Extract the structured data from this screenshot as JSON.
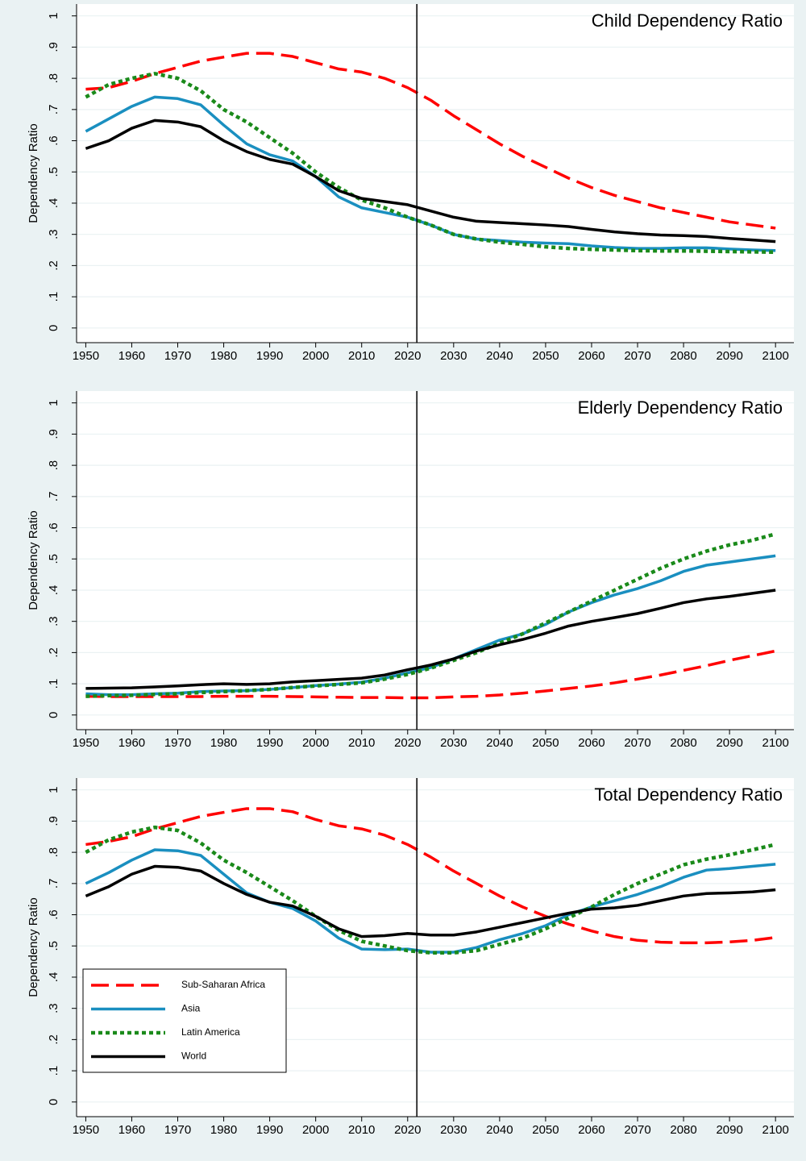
{
  "chart_data": [
    {
      "type": "line",
      "title": "Child Dependency Ratio",
      "y_label": "Dependency Ratio",
      "x": [
        1950,
        1955,
        1960,
        1965,
        1970,
        1975,
        1980,
        1985,
        1990,
        1995,
        2000,
        2005,
        2010,
        2015,
        2020,
        2025,
        2030,
        2035,
        2040,
        2045,
        2050,
        2055,
        2060,
        2065,
        2070,
        2075,
        2080,
        2085,
        2090,
        2095,
        2100
      ],
      "series": [
        {
          "color": "#ff0000",
          "style": "dashed",
          "values": [
            0.765,
            0.77,
            0.79,
            0.815,
            0.835,
            0.855,
            0.868,
            0.88,
            0.88,
            0.87,
            0.85,
            0.83,
            0.82,
            0.8,
            0.77,
            0.73,
            0.68,
            0.635,
            0.59,
            0.55,
            0.515,
            0.48,
            0.45,
            0.425,
            0.405,
            0.385,
            0.37,
            0.355,
            0.34,
            0.33,
            0.32
          ]
        },
        {
          "color": "#1a8fc0",
          "style": "solid",
          "values": [
            0.63,
            0.67,
            0.71,
            0.74,
            0.735,
            0.715,
            0.65,
            0.59,
            0.555,
            0.535,
            0.485,
            0.42,
            0.385,
            0.37,
            0.355,
            0.33,
            0.3,
            0.285,
            0.28,
            0.275,
            0.272,
            0.27,
            0.263,
            0.258,
            0.255,
            0.255,
            0.257,
            0.257,
            0.253,
            0.25,
            0.248
          ]
        },
        {
          "color": "#1a8a1a",
          "style": "dotted",
          "values": [
            0.74,
            0.78,
            0.8,
            0.815,
            0.8,
            0.76,
            0.7,
            0.66,
            0.61,
            0.56,
            0.5,
            0.45,
            0.41,
            0.385,
            0.355,
            0.33,
            0.3,
            0.285,
            0.275,
            0.268,
            0.26,
            0.255,
            0.252,
            0.25,
            0.248,
            0.247,
            0.247,
            0.246,
            0.245,
            0.244,
            0.243
          ]
        },
        {
          "color": "#000000",
          "style": "solid",
          "values": [
            0.575,
            0.6,
            0.64,
            0.665,
            0.66,
            0.645,
            0.6,
            0.565,
            0.54,
            0.525,
            0.485,
            0.44,
            0.415,
            0.405,
            0.395,
            0.375,
            0.355,
            0.342,
            0.338,
            0.334,
            0.33,
            0.325,
            0.316,
            0.308,
            0.302,
            0.298,
            0.296,
            0.293,
            0.287,
            0.282,
            0.277
          ]
        }
      ],
      "vline": 2022,
      "xlim": [
        1948,
        2104
      ],
      "ylim": [
        -0.047,
        1.038
      ],
      "xticks": [
        1950,
        1960,
        1970,
        1980,
        1990,
        2000,
        2010,
        2020,
        2030,
        2040,
        2050,
        2060,
        2070,
        2080,
        2090,
        2100
      ],
      "yticks": [
        0,
        {
          "value": 0.1,
          "label": ".1"
        },
        {
          "value": 0.2,
          "label": ".2"
        },
        {
          "value": 0.3,
          "label": ".3"
        },
        {
          "value": 0.4,
          "label": ".4"
        },
        {
          "value": 0.5,
          "label": ".5"
        },
        {
          "value": 0.6,
          "label": ".6"
        },
        {
          "value": 0.7,
          "label": ".7"
        },
        {
          "value": 0.8,
          "label": ".8"
        },
        {
          "value": 0.9,
          "label": ".9"
        },
        1
      ],
      "grid": true
    },
    {
      "type": "line",
      "title": "Elderly Dependency Ratio",
      "y_label": "Dependency Ratio",
      "x": [
        1950,
        1955,
        1960,
        1965,
        1970,
        1975,
        1980,
        1985,
        1990,
        1995,
        2000,
        2005,
        2010,
        2015,
        2020,
        2025,
        2030,
        2035,
        2040,
        2045,
        2050,
        2055,
        2060,
        2065,
        2070,
        2075,
        2080,
        2085,
        2090,
        2095,
        2100
      ],
      "series": [
        {
          "color": "#ff0000",
          "style": "dashed",
          "values": [
            0.06,
            0.059,
            0.059,
            0.059,
            0.059,
            0.059,
            0.06,
            0.06,
            0.06,
            0.059,
            0.058,
            0.057,
            0.056,
            0.056,
            0.055,
            0.055,
            0.058,
            0.06,
            0.064,
            0.07,
            0.077,
            0.085,
            0.093,
            0.103,
            0.115,
            0.128,
            0.143,
            0.158,
            0.175,
            0.19,
            0.205
          ]
        },
        {
          "color": "#1a8fc0",
          "style": "solid",
          "values": [
            0.068,
            0.065,
            0.065,
            0.068,
            0.07,
            0.075,
            0.077,
            0.078,
            0.082,
            0.088,
            0.094,
            0.099,
            0.105,
            0.118,
            0.135,
            0.152,
            0.18,
            0.21,
            0.24,
            0.26,
            0.29,
            0.33,
            0.36,
            0.385,
            0.405,
            0.43,
            0.46,
            0.48,
            0.49,
            0.5,
            0.51
          ]
        },
        {
          "color": "#1a8a1a",
          "style": "dotted",
          "values": [
            0.06,
            0.062,
            0.063,
            0.066,
            0.068,
            0.072,
            0.075,
            0.078,
            0.082,
            0.088,
            0.093,
            0.098,
            0.103,
            0.115,
            0.13,
            0.15,
            0.175,
            0.2,
            0.23,
            0.26,
            0.295,
            0.33,
            0.365,
            0.4,
            0.435,
            0.47,
            0.5,
            0.525,
            0.545,
            0.56,
            0.58
          ]
        },
        {
          "color": "#000000",
          "style": "solid",
          "values": [
            0.085,
            0.086,
            0.087,
            0.09,
            0.093,
            0.097,
            0.1,
            0.098,
            0.1,
            0.106,
            0.11,
            0.114,
            0.118,
            0.128,
            0.145,
            0.16,
            0.18,
            0.205,
            0.225,
            0.242,
            0.262,
            0.285,
            0.3,
            0.312,
            0.325,
            0.342,
            0.36,
            0.372,
            0.38,
            0.39,
            0.4
          ]
        }
      ],
      "vline": 2022,
      "xlim": [
        1948,
        2104
      ],
      "ylim": [
        -0.047,
        1.038
      ],
      "xticks": [
        1950,
        1960,
        1970,
        1980,
        1990,
        2000,
        2010,
        2020,
        2030,
        2040,
        2050,
        2060,
        2070,
        2080,
        2090,
        2100
      ],
      "yticks": [
        0,
        {
          "value": 0.1,
          "label": ".1"
        },
        {
          "value": 0.2,
          "label": ".2"
        },
        {
          "value": 0.3,
          "label": ".3"
        },
        {
          "value": 0.4,
          "label": ".4"
        },
        {
          "value": 0.5,
          "label": ".5"
        },
        {
          "value": 0.6,
          "label": ".6"
        },
        {
          "value": 0.7,
          "label": ".7"
        },
        {
          "value": 0.8,
          "label": ".8"
        },
        {
          "value": 0.9,
          "label": ".9"
        },
        1
      ],
      "grid": true
    },
    {
      "type": "line",
      "title": "Total Dependency Ratio",
      "y_label": "Dependency Ratio",
      "x": [
        1950,
        1955,
        1960,
        1965,
        1970,
        1975,
        1980,
        1985,
        1990,
        1995,
        2000,
        2005,
        2010,
        2015,
        2020,
        2025,
        2030,
        2035,
        2040,
        2045,
        2050,
        2055,
        2060,
        2065,
        2070,
        2075,
        2080,
        2085,
        2090,
        2095,
        2100
      ],
      "series": [
        {
          "name": "Sub-Saharan Africa",
          "color": "#ff0000",
          "style": "dashed",
          "values": [
            0.825,
            0.835,
            0.85,
            0.875,
            0.895,
            0.915,
            0.928,
            0.94,
            0.94,
            0.93,
            0.905,
            0.885,
            0.875,
            0.855,
            0.825,
            0.785,
            0.74,
            0.7,
            0.66,
            0.625,
            0.595,
            0.57,
            0.548,
            0.53,
            0.518,
            0.512,
            0.51,
            0.51,
            0.513,
            0.518,
            0.527
          ]
        },
        {
          "name": "Asia",
          "color": "#1a8fc0",
          "style": "solid",
          "values": [
            0.7,
            0.735,
            0.775,
            0.808,
            0.805,
            0.79,
            0.73,
            0.67,
            0.64,
            0.62,
            0.58,
            0.525,
            0.49,
            0.488,
            0.49,
            0.48,
            0.48,
            0.495,
            0.52,
            0.54,
            0.565,
            0.6,
            0.625,
            0.645,
            0.665,
            0.69,
            0.72,
            0.743,
            0.748,
            0.755,
            0.762
          ]
        },
        {
          "name": "Latin America",
          "color": "#1a8a1a",
          "style": "dotted",
          "values": [
            0.8,
            0.84,
            0.865,
            0.88,
            0.87,
            0.83,
            0.775,
            0.735,
            0.69,
            0.645,
            0.595,
            0.55,
            0.515,
            0.5,
            0.485,
            0.478,
            0.478,
            0.485,
            0.505,
            0.525,
            0.555,
            0.59,
            0.625,
            0.665,
            0.7,
            0.73,
            0.76,
            0.778,
            0.792,
            0.808,
            0.825
          ]
        },
        {
          "name": "World",
          "color": "#000000",
          "style": "solid",
          "values": [
            0.66,
            0.69,
            0.73,
            0.755,
            0.752,
            0.74,
            0.7,
            0.665,
            0.64,
            0.628,
            0.595,
            0.555,
            0.53,
            0.533,
            0.54,
            0.535,
            0.535,
            0.545,
            0.56,
            0.575,
            0.59,
            0.605,
            0.618,
            0.622,
            0.63,
            0.645,
            0.66,
            0.668,
            0.67,
            0.673,
            0.68
          ]
        }
      ],
      "vline": 2022,
      "xlim": [
        1948,
        2104
      ],
      "ylim": [
        -0.047,
        1.038
      ],
      "xticks": [
        1950,
        1960,
        1970,
        1980,
        1990,
        2000,
        2010,
        2020,
        2030,
        2040,
        2050,
        2060,
        2070,
        2080,
        2090,
        2100
      ],
      "yticks": [
        0,
        {
          "value": 0.1,
          "label": ".1"
        },
        {
          "value": 0.2,
          "label": ".2"
        },
        {
          "value": 0.3,
          "label": ".3"
        },
        {
          "value": 0.4,
          "label": ".4"
        },
        {
          "value": 0.5,
          "label": ".5"
        },
        {
          "value": 0.6,
          "label": ".6"
        },
        {
          "value": 0.7,
          "label": ".7"
        },
        {
          "value": 0.8,
          "label": ".8"
        },
        {
          "value": 0.9,
          "label": ".9"
        },
        1
      ],
      "grid": true,
      "legend": "lower left"
    }
  ]
}
